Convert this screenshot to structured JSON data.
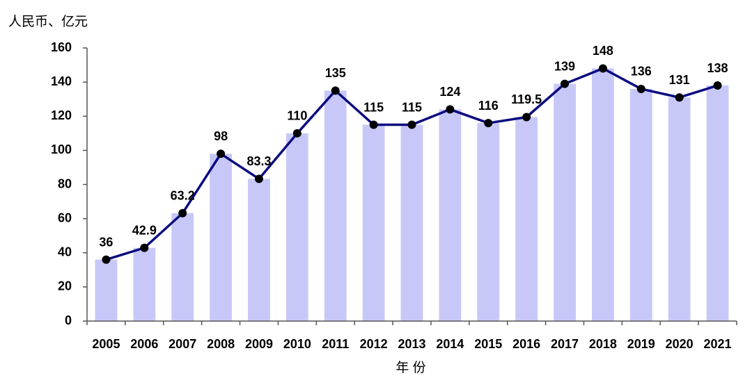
{
  "chart_data": {
    "type": "combo",
    "y_label": "人民币、亿元",
    "x_label": "年 份",
    "categories": [
      "2005",
      "2006",
      "2007",
      "2008",
      "2009",
      "2010",
      "2011",
      "2012",
      "2013",
      "2014",
      "2015",
      "2016",
      "2017",
      "2018",
      "2019",
      "2020",
      "2021"
    ],
    "values": [
      36,
      42.9,
      63.2,
      98,
      83.3,
      110,
      135,
      115,
      115,
      124,
      116,
      119.5,
      139,
      148,
      136,
      131,
      138
    ],
    "color": "#c8c8f8",
    "line_color": "#0c0c80",
    "marker_color": "#000000",
    "ylim": [
      0,
      160
    ],
    "yticks": [
      0,
      20,
      40,
      60,
      80,
      100,
      120,
      140,
      160
    ]
  }
}
